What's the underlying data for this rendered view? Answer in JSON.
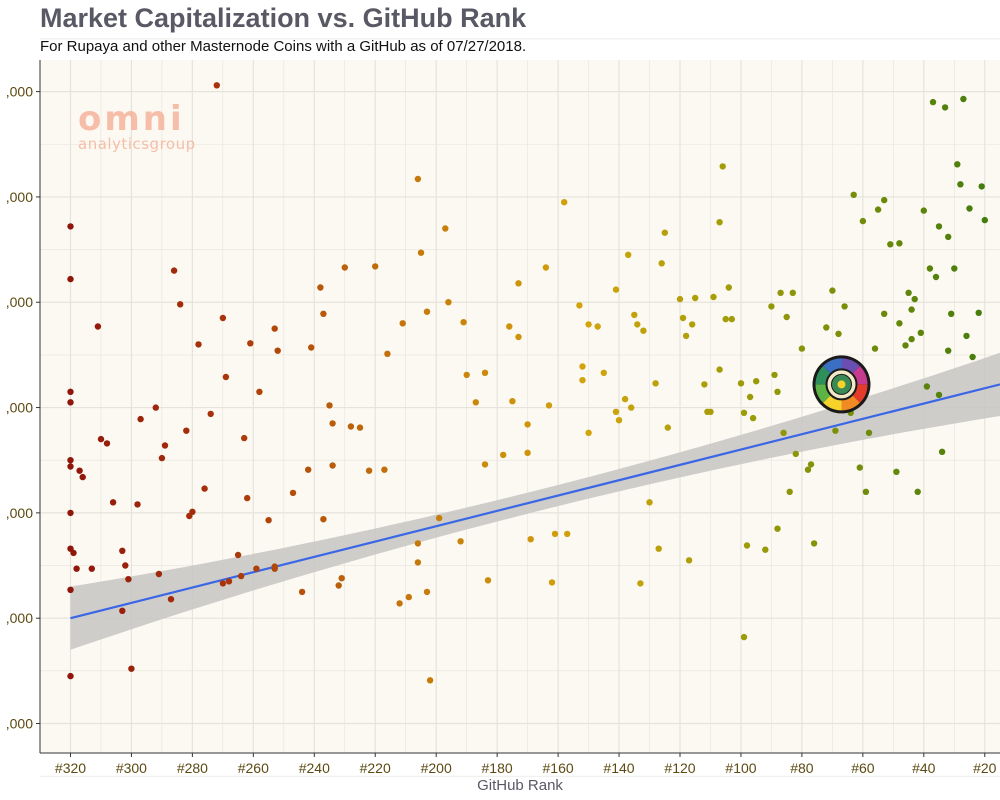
{
  "chart_data": {
    "type": "scatter",
    "title": "Market Capitalization vs. GitHub Rank",
    "subtitle": "For Rupaya and other Masternode Coins with a GitHub as of 07/27/2018.",
    "xlabel": "GitHub Rank",
    "xlim": [
      330,
      15
    ],
    "ylim": [
      0.72,
      7.3
    ],
    "x_ticks": [
      320,
      300,
      280,
      260,
      240,
      220,
      200,
      180,
      160,
      140,
      120,
      100,
      80,
      60,
      40,
      20
    ],
    "x_tick_labels": [
      "#320",
      "#300",
      "#280",
      "#260",
      "#240",
      "#220",
      "#200",
      "#180",
      "#160",
      "#140",
      "#120",
      "#100",
      "#80",
      "#60",
      "#40",
      "#20"
    ],
    "y_ticks": [
      1,
      2,
      3,
      4,
      5,
      6,
      7
    ],
    "y_tick_labels": [
      ",000",
      ",000",
      ",000",
      ",000",
      ",000",
      ",000",
      ",000"
    ],
    "grid": true,
    "watermark": {
      "line1": "omni",
      "line2": "analyticsgroup",
      "color": "#f4a98f"
    },
    "colors": {
      "panel": "#fbf9f2",
      "grid": "#e6e3dc",
      "trend": "#3b66e6",
      "band": "#c5c5c3",
      "far": "#8b0f0a",
      "near": "#3e7a0c"
    },
    "trend": {
      "x": [
        320,
        15
      ],
      "y": [
        2.0,
        4.22
      ],
      "band_half_width_ends": 0.3,
      "band_half_width_middle": 0.1
    },
    "highlight": {
      "name": "Rupaya",
      "x": 67,
      "y": 4.22,
      "icon": "rupaya-logo-icon"
    },
    "points": [
      [
        320,
        5.72
      ],
      [
        320,
        5.22
      ],
      [
        320,
        4.15
      ],
      [
        320,
        4.05
      ],
      [
        320,
        3.5
      ],
      [
        320,
        3.44
      ],
      [
        320,
        3.0
      ],
      [
        320,
        2.66
      ],
      [
        320,
        2.27
      ],
      [
        320,
        1.45
      ],
      [
        319,
        2.62
      ],
      [
        318,
        2.47
      ],
      [
        317,
        3.4
      ],
      [
        316,
        3.34
      ],
      [
        313,
        2.47
      ],
      [
        311,
        4.77
      ],
      [
        310,
        3.7
      ],
      [
        308,
        3.66
      ],
      [
        306,
        3.1
      ],
      [
        303,
        2.64
      ],
      [
        303,
        2.07
      ],
      [
        302,
        2.5
      ],
      [
        301,
        2.37
      ],
      [
        300,
        1.52
      ],
      [
        298,
        3.08
      ],
      [
        297,
        3.89
      ],
      [
        292,
        4.0
      ],
      [
        291,
        2.42
      ],
      [
        290,
        3.52
      ],
      [
        289,
        3.64
      ],
      [
        287,
        2.18
      ],
      [
        286,
        5.3
      ],
      [
        284,
        4.98
      ],
      [
        282,
        3.78
      ],
      [
        281,
        2.97
      ],
      [
        280,
        3.01
      ],
      [
        278,
        4.6
      ],
      [
        276,
        3.23
      ],
      [
        274,
        3.94
      ],
      [
        272,
        7.06
      ],
      [
        270,
        4.85
      ],
      [
        270,
        2.33
      ],
      [
        269,
        4.29
      ],
      [
        268,
        2.35
      ],
      [
        265,
        2.6
      ],
      [
        264,
        2.4
      ],
      [
        263,
        3.71
      ],
      [
        262,
        3.14
      ],
      [
        261,
        4.61
      ],
      [
        259,
        2.47
      ],
      [
        258,
        4.15
      ],
      [
        255,
        2.93
      ],
      [
        253,
        4.75
      ],
      [
        253,
        2.47
      ],
      [
        253,
        2.49
      ],
      [
        252,
        4.54
      ],
      [
        247,
        3.19
      ],
      [
        244,
        2.25
      ],
      [
        242,
        3.41
      ],
      [
        241,
        4.57
      ],
      [
        238,
        5.14
      ],
      [
        237,
        2.94
      ],
      [
        237,
        4.89
      ],
      [
        235,
        4.02
      ],
      [
        234,
        3.85
      ],
      [
        234,
        3.45
      ],
      [
        232,
        2.31
      ],
      [
        231,
        2.38
      ],
      [
        230,
        5.33
      ],
      [
        228,
        3.82
      ],
      [
        225,
        3.81
      ],
      [
        222,
        3.4
      ],
      [
        220,
        5.34
      ],
      [
        217,
        3.41
      ],
      [
        216,
        4.51
      ],
      [
        212,
        2.14
      ],
      [
        211,
        4.8
      ],
      [
        209,
        2.2
      ],
      [
        206,
        2.71
      ],
      [
        206,
        2.53
      ],
      [
        206,
        6.17
      ],
      [
        205,
        5.47
      ],
      [
        203,
        4.91
      ],
      [
        203,
        2.25
      ],
      [
        202,
        1.41
      ],
      [
        199,
        2.95
      ],
      [
        197,
        5.7
      ],
      [
        196,
        5.0
      ],
      [
        192,
        2.73
      ],
      [
        191,
        4.81
      ],
      [
        190,
        4.31
      ],
      [
        187,
        4.05
      ],
      [
        184,
        3.46
      ],
      [
        184,
        4.33
      ],
      [
        183,
        2.36
      ],
      [
        178,
        3.55
      ],
      [
        176,
        4.77
      ],
      [
        175,
        4.06
      ],
      [
        173,
        4.67
      ],
      [
        173,
        5.18
      ],
      [
        170,
        3.84
      ],
      [
        170,
        3.57
      ],
      [
        169,
        2.75
      ],
      [
        164,
        5.33
      ],
      [
        163,
        4.02
      ],
      [
        162,
        2.34
      ],
      [
        161,
        2.8
      ],
      [
        158,
        5.95
      ],
      [
        157,
        2.8
      ],
      [
        153,
        4.97
      ],
      [
        152,
        4.26
      ],
      [
        152,
        4.39
      ],
      [
        150,
        3.76
      ],
      [
        150,
        4.79
      ],
      [
        147,
        4.77
      ],
      [
        145,
        4.33
      ],
      [
        141,
        5.12
      ],
      [
        141,
        3.96
      ],
      [
        140,
        3.88
      ],
      [
        138,
        4.08
      ],
      [
        137,
        5.45
      ],
      [
        136,
        4.0
      ],
      [
        135,
        4.88
      ],
      [
        134,
        4.79
      ],
      [
        133,
        2.33
      ],
      [
        132,
        4.73
      ],
      [
        130,
        3.1
      ],
      [
        128,
        4.23
      ],
      [
        127,
        2.66
      ],
      [
        126,
        5.37
      ],
      [
        125,
        5.66
      ],
      [
        124,
        3.81
      ],
      [
        120,
        5.03
      ],
      [
        119,
        4.85
      ],
      [
        118,
        4.68
      ],
      [
        117,
        2.55
      ],
      [
        116,
        4.79
      ],
      [
        115,
        5.04
      ],
      [
        112,
        4.22
      ],
      [
        111,
        3.96
      ],
      [
        110,
        3.96
      ],
      [
        109,
        5.05
      ],
      [
        107,
        4.36
      ],
      [
        107,
        5.76
      ],
      [
        106,
        6.29
      ],
      [
        105,
        4.84
      ],
      [
        104,
        5.14
      ],
      [
        103,
        4.84
      ],
      [
        100,
        4.23
      ],
      [
        99,
        3.95
      ],
      [
        99,
        1.82
      ],
      [
        98,
        2.69
      ],
      [
        97,
        4.1
      ],
      [
        96,
        3.9
      ],
      [
        95,
        4.25
      ],
      [
        92,
        2.65
      ],
      [
        90,
        4.96
      ],
      [
        89,
        4.31
      ],
      [
        88,
        2.85
      ],
      [
        88,
        4.15
      ],
      [
        87,
        5.09
      ],
      [
        86,
        3.76
      ],
      [
        85,
        4.86
      ],
      [
        84,
        3.2
      ],
      [
        83,
        5.09
      ],
      [
        82,
        3.56
      ],
      [
        80,
        4.56
      ],
      [
        78,
        3.41
      ],
      [
        77,
        3.46
      ],
      [
        76,
        2.71
      ],
      [
        73,
        4.33
      ],
      [
        72,
        4.76
      ],
      [
        71,
        4.34
      ],
      [
        70,
        5.11
      ],
      [
        69,
        3.78
      ],
      [
        68,
        4.7
      ],
      [
        66,
        4.96
      ],
      [
        64,
        3.95
      ],
      [
        63,
        6.02
      ],
      [
        61,
        3.43
      ],
      [
        60,
        5.77
      ],
      [
        59,
        3.2
      ],
      [
        58,
        3.76
      ],
      [
        56,
        4.56
      ],
      [
        55,
        5.88
      ],
      [
        53,
        4.89
      ],
      [
        53,
        5.97
      ],
      [
        51,
        5.55
      ],
      [
        49,
        3.39
      ],
      [
        48,
        4.8
      ],
      [
        48,
        5.56
      ],
      [
        46,
        4.59
      ],
      [
        45,
        5.09
      ],
      [
        44,
        4.93
      ],
      [
        44,
        4.65
      ],
      [
        43,
        5.03
      ],
      [
        42,
        3.2
      ],
      [
        41,
        4.71
      ],
      [
        40,
        5.87
      ],
      [
        39,
        4.2
      ],
      [
        38,
        5.32
      ],
      [
        37,
        6.9
      ],
      [
        36,
        5.24
      ],
      [
        35,
        4.12
      ],
      [
        35,
        5.72
      ],
      [
        34,
        3.58
      ],
      [
        33,
        6.85
      ],
      [
        32,
        5.62
      ],
      [
        32,
        4.54
      ],
      [
        31,
        4.89
      ],
      [
        30,
        5.32
      ],
      [
        29,
        6.31
      ],
      [
        28,
        6.12
      ],
      [
        27,
        6.93
      ],
      [
        26,
        4.68
      ],
      [
        25,
        5.89
      ],
      [
        24,
        4.48
      ],
      [
        22,
        4.9
      ],
      [
        21,
        6.1
      ],
      [
        20,
        5.78
      ]
    ]
  }
}
